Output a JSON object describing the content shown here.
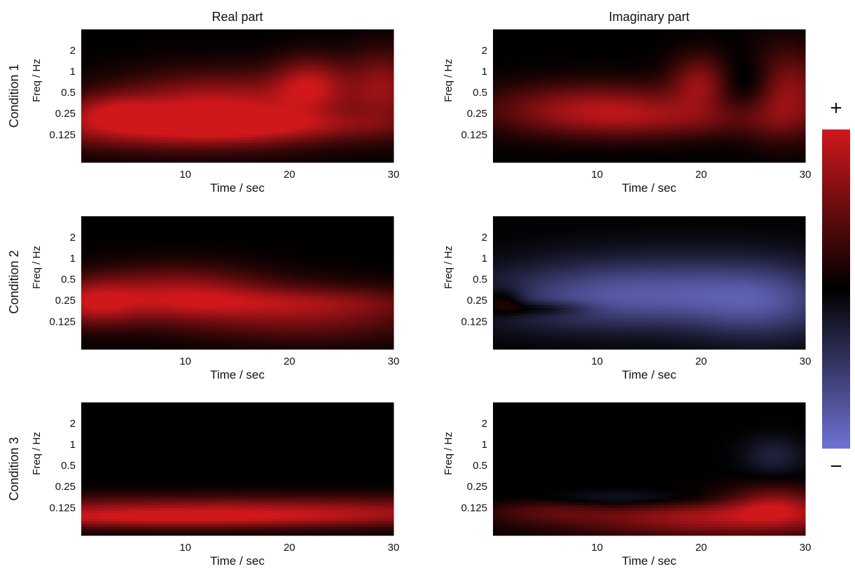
{
  "colors": {
    "positive": "#d0181c",
    "zero": "#000000",
    "negative": "#6f72d4",
    "background": "#ffffff"
  },
  "colorbar": {
    "plus_label": "+",
    "minus_label": "−"
  },
  "chart_data": {
    "type": "heatmap",
    "column_titles": [
      "Real part",
      "Imaginary part"
    ],
    "row_labels": [
      "Condition 1",
      "Condition 2",
      "Condition 3"
    ],
    "xlabel": "Time / sec",
    "ylabel": "Freq / Hz",
    "xlim": [
      0,
      30
    ],
    "xticks": [
      10,
      20,
      30
    ],
    "yscale": "log2",
    "ylim": [
      0.05,
      4
    ],
    "yticks": [
      2,
      1,
      0.5,
      0.25,
      0.125
    ],
    "ytick_labels": [
      "2",
      "1",
      "0.5",
      "0.25",
      "0.125"
    ],
    "colorbar": {
      "ticks": [
        "+",
        "−"
      ],
      "colormap": "blue-black-red (diverging)"
    },
    "panels": [
      {
        "row": 1,
        "col": 1,
        "row_label": "Condition 1",
        "col_title": "Real part",
        "blobs": [
          {
            "t": 13,
            "f": 0.33,
            "st": 7,
            "sf": 0.35,
            "v": 0.85
          },
          {
            "t": 22,
            "f": 0.65,
            "st": 2.5,
            "sf": 0.3,
            "v": 0.75
          },
          {
            "t": 29,
            "f": 0.6,
            "st": 2.5,
            "sf": 0.4,
            "v": 0.65
          },
          {
            "t": 8,
            "f": 0.15,
            "st": 12,
            "sf": 0.25,
            "v": 0.6
          },
          {
            "t": 18,
            "f": 0.17,
            "st": 10,
            "sf": 0.15,
            "v": 0.35
          },
          {
            "t": 3,
            "f": 0.27,
            "st": 3,
            "sf": 0.2,
            "v": 0.5
          }
        ]
      },
      {
        "row": 1,
        "col": 2,
        "row_label": "Condition 1",
        "col_title": "Imaginary part",
        "blobs": [
          {
            "t": 10,
            "f": 0.29,
            "st": 7,
            "sf": 0.28,
            "v": 0.75
          },
          {
            "t": 20,
            "f": 0.7,
            "st": 2,
            "sf": 0.3,
            "v": 0.65
          },
          {
            "t": 28,
            "f": 0.5,
            "st": 2.5,
            "sf": 0.45,
            "v": 0.8
          },
          {
            "t": 25,
            "f": 0.65,
            "st": 2.5,
            "sf": 0.3,
            "v": -0.35
          },
          {
            "t": 18,
            "f": 0.2,
            "st": 8,
            "sf": 0.2,
            "v": 0.3
          }
        ]
      },
      {
        "row": 2,
        "col": 1,
        "row_label": "Condition 2",
        "col_title": "Real part",
        "blobs": [
          {
            "t": 9,
            "f": 0.3,
            "st": 6,
            "sf": 0.3,
            "v": 0.75
          },
          {
            "t": 1,
            "f": 0.23,
            "st": 3,
            "sf": 0.25,
            "v": 0.7
          },
          {
            "t": 22,
            "f": 0.16,
            "st": 8,
            "sf": 0.3,
            "v": 0.55
          },
          {
            "t": 20,
            "f": 0.24,
            "st": 10,
            "sf": 0.15,
            "v": 0.3
          }
        ]
      },
      {
        "row": 2,
        "col": 2,
        "row_label": "Condition 2",
        "col_title": "Imaginary part",
        "blobs": [
          {
            "t": 12,
            "f": 0.27,
            "st": 9,
            "sf": 0.35,
            "v": -0.6
          },
          {
            "t": 26,
            "f": 0.22,
            "st": 5,
            "sf": 0.4,
            "v": -0.5
          },
          {
            "t": 18,
            "f": 0.5,
            "st": 10,
            "sf": 0.4,
            "v": -0.22
          },
          {
            "t": 5,
            "f": 0.19,
            "st": 3,
            "sf": 0.08,
            "v": 0.35
          },
          {
            "t": 1,
            "f": 0.25,
            "st": 1.5,
            "sf": 0.15,
            "v": 0.35
          }
        ]
      },
      {
        "row": 3,
        "col": 1,
        "row_label": "Condition 3",
        "col_title": "Real part",
        "blobs": [
          {
            "t": 15,
            "f": 0.11,
            "st": 25,
            "sf": 0.16,
            "v": 0.8
          },
          {
            "t": 8,
            "f": 0.085,
            "st": 14,
            "sf": 0.1,
            "v": 0.45
          }
        ]
      },
      {
        "row": 3,
        "col": 2,
        "row_label": "Condition 3",
        "col_title": "Imaginary part",
        "blobs": [
          {
            "t": 22,
            "f": 0.09,
            "st": 10,
            "sf": 0.2,
            "v": 0.8
          },
          {
            "t": 27,
            "f": 0.14,
            "st": 3,
            "sf": 0.2,
            "v": 0.55
          },
          {
            "t": 12,
            "f": 0.16,
            "st": 8,
            "sf": 0.1,
            "v": -0.3
          },
          {
            "t": 27,
            "f": 0.7,
            "st": 2,
            "sf": 0.2,
            "v": -0.25
          },
          {
            "t": 5,
            "f": 0.12,
            "st": 4,
            "sf": 0.15,
            "v": 0.3
          }
        ]
      }
    ]
  }
}
